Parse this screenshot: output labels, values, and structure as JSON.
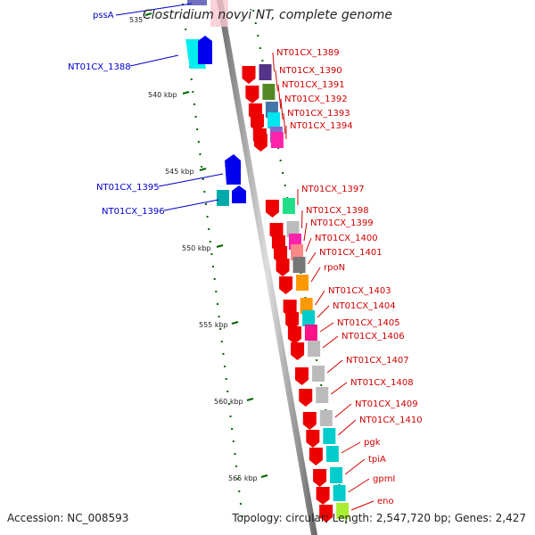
{
  "title": "Clostridium novyi NT, complete genome",
  "footer": {
    "accession": "Accession: NC_008593",
    "topology": "Topology: circular; Length: 2,547,720 bp; Genes: 2,427"
  },
  "colors": {
    "backbone": "#9a9a9a",
    "forward_label": "#0000cc",
    "reverse_label": "#d00000",
    "tick": "#006600",
    "cds_reverse": "#ee0000",
    "cds_forward": "#0000ee"
  },
  "kbp_ticks": [
    "535",
    "540 kbp",
    "545 kbp",
    "550 kbp",
    "555 kbp",
    "560 kbp",
    "565 kbp"
  ],
  "forward_genes": [
    {
      "label": "pssA",
      "color": "#7070c0"
    },
    {
      "label": "NT01CX_1388",
      "color": "#00ffff"
    },
    {
      "label": "NT01CX_1395",
      "color": "#00cccc"
    },
    {
      "label": "NT01CX_1396",
      "color": "#00aaaa"
    }
  ],
  "reverse_genes": [
    {
      "label": "NT01CX_1389",
      "color": "#553388"
    },
    {
      "label": "NT01CX_1390",
      "color": "#558822"
    },
    {
      "label": "NT01CX_1391",
      "color": "#4477aa"
    },
    {
      "label": "NT01CX_1392",
      "color": "#00e5ee"
    },
    {
      "label": "NT01CX_1393",
      "color": "#8866cc"
    },
    {
      "label": "NT01CX_1394",
      "color": "#ff22aa"
    },
    {
      "label": "NT01CX_1397",
      "color": "#22dd88"
    },
    {
      "label": "NT01CX_1398",
      "color": "#bbbbbb"
    },
    {
      "label": "NT01CX_1399",
      "color": "#ff22aa"
    },
    {
      "label": "NT01CX_1400",
      "color": "#ff8888"
    },
    {
      "label": "NT01CX_1401",
      "color": "#777777"
    },
    {
      "label": "rpoN",
      "color": "#ff9900"
    },
    {
      "label": "NT01CX_1403",
      "color": "#ff9900"
    },
    {
      "label": "NT01CX_1404",
      "color": "#00cccc"
    },
    {
      "label": "NT01CX_1405",
      "color": "#ff1188"
    },
    {
      "label": "NT01CX_1406",
      "color": "#bbbbbb"
    },
    {
      "label": "NT01CX_1407",
      "color": "#bbbbbb"
    },
    {
      "label": "NT01CX_1408",
      "color": "#bbbbbb"
    },
    {
      "label": "NT01CX_1409",
      "color": "#bbbbbb"
    },
    {
      "label": "NT01CX_1410",
      "color": "#00cccc"
    },
    {
      "label": "pgk",
      "color": "#00cccc"
    },
    {
      "label": "tpiA",
      "color": "#00cccc"
    },
    {
      "label": "gpmI",
      "color": "#00cccc"
    },
    {
      "label": "eno",
      "color": "#aaee33"
    }
  ]
}
